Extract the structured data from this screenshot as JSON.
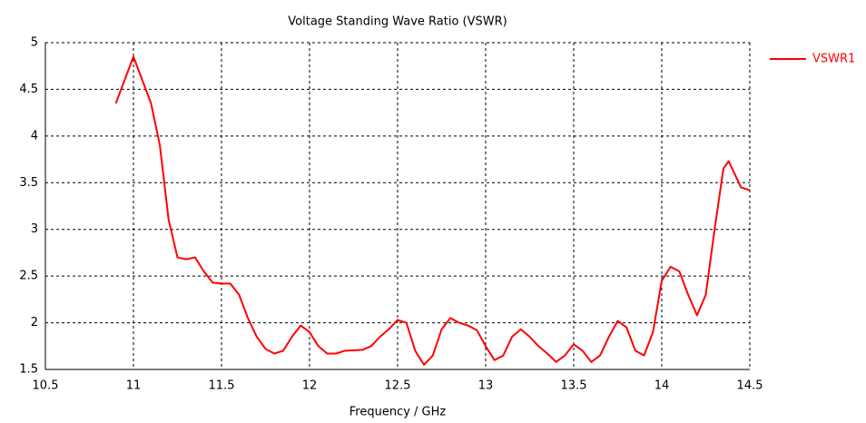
{
  "chart_data": {
    "type": "line",
    "title": "Voltage Standing Wave Ratio (VSWR)",
    "xlabel": "Frequency / GHz",
    "x": [
      10.9,
      10.95,
      11.0,
      11.05,
      11.1,
      11.15,
      11.2,
      11.25,
      11.3,
      11.35,
      11.4,
      11.45,
      11.5,
      11.55,
      11.6,
      11.65,
      11.7,
      11.75,
      11.8,
      11.85,
      11.9,
      11.95,
      12.0,
      12.05,
      12.1,
      12.15,
      12.2,
      12.3,
      12.35,
      12.4,
      12.45,
      12.5,
      12.55,
      12.6,
      12.65,
      12.7,
      12.75,
      12.8,
      12.85,
      12.9,
      12.95,
      13.0,
      13.05,
      13.1,
      13.15,
      13.2,
      13.25,
      13.3,
      13.35,
      13.4,
      13.45,
      13.5,
      13.55,
      13.6,
      13.65,
      13.7,
      13.75,
      13.8,
      13.85,
      13.9,
      13.95,
      14.0,
      14.05,
      14.1,
      14.15,
      14.2,
      14.25,
      14.3,
      14.35,
      14.38,
      14.4,
      14.45,
      14.5
    ],
    "series": [
      {
        "name": "VSWR1",
        "color": "#ff0000",
        "values": [
          4.35,
          4.6,
          4.85,
          4.6,
          4.35,
          3.9,
          3.1,
          2.7,
          2.68,
          2.7,
          2.55,
          2.43,
          2.42,
          2.42,
          2.3,
          2.05,
          1.85,
          1.72,
          1.67,
          1.7,
          1.85,
          1.97,
          1.9,
          1.75,
          1.67,
          1.67,
          1.7,
          1.71,
          1.75,
          1.85,
          1.93,
          2.03,
          2.0,
          1.7,
          1.55,
          1.65,
          1.93,
          2.05,
          2.0,
          1.97,
          1.92,
          1.75,
          1.6,
          1.65,
          1.85,
          1.93,
          1.85,
          1.75,
          1.67,
          1.58,
          1.65,
          1.77,
          1.7,
          1.58,
          1.65,
          1.85,
          2.02,
          1.95,
          1.7,
          1.65,
          1.9,
          2.45,
          2.6,
          2.55,
          2.3,
          2.08,
          2.3,
          3.0,
          3.65,
          3.73,
          3.65,
          3.45,
          3.42
        ]
      }
    ],
    "xlim": [
      10.5,
      14.5
    ],
    "xticks": [
      10.5,
      11,
      11.5,
      12,
      12.5,
      13,
      13.5,
      14,
      14.5
    ],
    "ylim": [
      1.5,
      5
    ],
    "yticks": [
      1.5,
      2,
      2.5,
      3,
      3.5,
      4,
      4.5,
      5
    ],
    "grid": true,
    "legend": "right"
  }
}
